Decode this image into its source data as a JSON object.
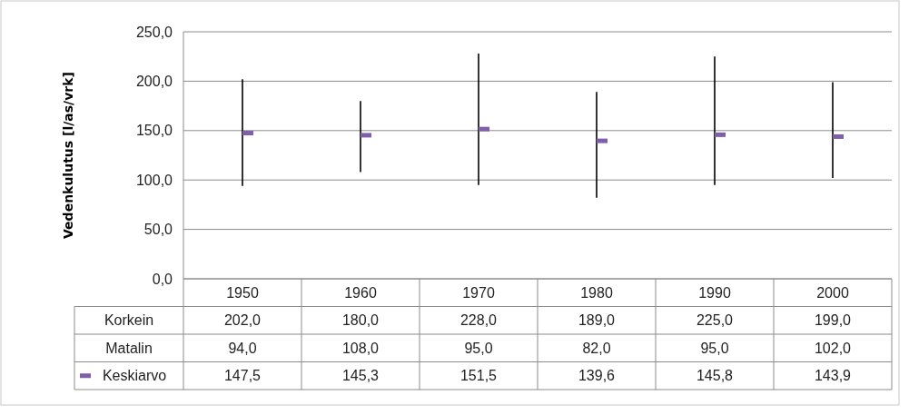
{
  "chart_data": {
    "type": "scatter",
    "ylabel": "Vedenkulutus [l/as/vrk]",
    "categories": [
      "1950",
      "1960",
      "1970",
      "1980",
      "1990",
      "2000"
    ],
    "series": [
      {
        "name": "Keskiarvo",
        "color": "#7f5fa8",
        "values": [
          147.5,
          145.3,
          151.5,
          139.6,
          145.8,
          143.9
        ],
        "errors": [
          [
            94,
            202
          ],
          [
            108,
            180
          ],
          [
            95,
            228
          ],
          [
            82,
            189
          ],
          [
            95,
            225
          ],
          [
            102,
            199
          ]
        ],
        "value_labels": [
          "147,5",
          "145,3",
          "151,5",
          "139,6",
          "145,8",
          "143,9"
        ]
      }
    ],
    "annotations": [
      "Korkein",
      "Matalin",
      "202,0",
      "180,0",
      "228,0",
      "189,0",
      "225,0",
      "199,0",
      "94,0",
      "108,0",
      "95,0",
      "82,0",
      "95,0",
      "102,0"
    ],
    "ylim": [
      0,
      250
    ],
    "yticks": [
      {
        "value": 0,
        "label": "0,0"
      },
      {
        "value": 50,
        "label": "50,0"
      },
      {
        "value": 100,
        "label": "100,0"
      },
      {
        "value": 150,
        "label": "150,0"
      },
      {
        "value": 200,
        "label": "200,0"
      },
      {
        "value": 250,
        "label": "250,0"
      }
    ],
    "grid": "y",
    "legend": "bottom",
    "marker": "square"
  }
}
